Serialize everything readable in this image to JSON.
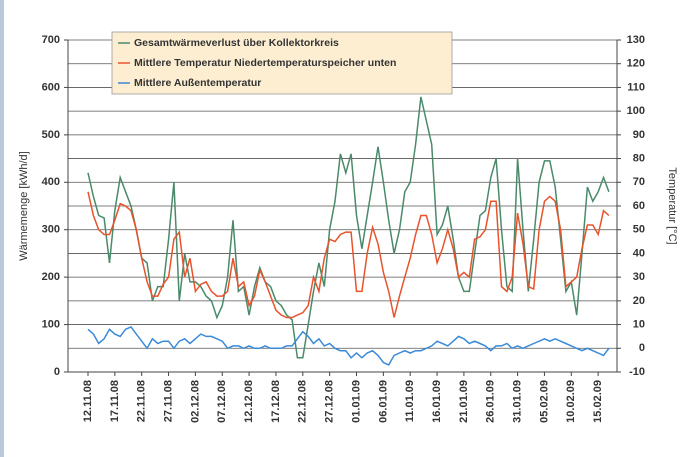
{
  "chart_data": {
    "type": "line",
    "ylabel": "Wärmemenge [kWh/d]",
    "y2label": "Temperatur [°C]",
    "ylim": [
      0,
      700
    ],
    "yticks": [
      0,
      100,
      200,
      300,
      400,
      500,
      600,
      700
    ],
    "y2lim": [
      -10,
      130
    ],
    "y2ticks": [
      -10,
      0,
      10,
      20,
      30,
      40,
      50,
      60,
      70,
      80,
      90,
      100,
      110,
      120,
      130
    ],
    "grid": true,
    "legend": "top-left",
    "categories": [
      "12.11.08",
      null,
      null,
      null,
      null,
      "17.11.08",
      null,
      null,
      null,
      null,
      "22.11.08",
      null,
      null,
      null,
      null,
      "27.11.08",
      null,
      null,
      null,
      null,
      "02.12.08",
      null,
      null,
      null,
      null,
      "07.12.08",
      null,
      null,
      null,
      null,
      "12.12.08",
      null,
      null,
      null,
      null,
      "17.12.08",
      null,
      null,
      null,
      null,
      "22.12.08",
      null,
      null,
      null,
      null,
      "27.12.08",
      null,
      null,
      null,
      null,
      "01.01.09",
      null,
      null,
      null,
      null,
      "06.01.09",
      null,
      null,
      null,
      null,
      "11.01.09",
      null,
      null,
      null,
      null,
      "16.01.09",
      null,
      null,
      null,
      null,
      "21.01.09",
      null,
      null,
      null,
      null,
      "26.01.09",
      null,
      null,
      null,
      null,
      "31.01.09",
      null,
      null,
      null,
      null,
      "05.02.09",
      null,
      null,
      null,
      null,
      "10.02.09",
      null,
      null,
      null,
      null,
      "15.02.09",
      null,
      null
    ],
    "series": [
      {
        "name": "Gesamtwärmeverlust über Kollektorkreis",
        "color": "#4a8a6a",
        "axis": "y",
        "values": [
          420,
          370,
          330,
          325,
          230,
          340,
          410,
          380,
          350,
          300,
          240,
          230,
          150,
          180,
          180,
          280,
          400,
          150,
          250,
          190,
          190,
          180,
          160,
          150,
          115,
          140,
          200,
          320,
          170,
          180,
          120,
          180,
          220,
          190,
          180,
          150,
          140,
          120,
          110,
          30,
          30,
          100,
          170,
          230,
          180,
          300,
          360,
          460,
          420,
          460,
          330,
          260,
          330,
          400,
          475,
          400,
          320,
          250,
          300,
          380,
          400,
          480,
          580,
          530,
          480,
          290,
          310,
          350,
          280,
          200,
          170,
          170,
          250,
          330,
          340,
          410,
          450,
          300,
          180,
          170,
          450,
          300,
          170,
          280,
          400,
          445,
          445,
          390,
          280,
          170,
          190,
          120,
          250,
          390,
          360,
          380,
          410,
          380
        ]
      },
      {
        "name": "Mittlere Temperatur Niedertemperaturspeicher unten",
        "color": "#e8532c",
        "axis": "y2",
        "values": [
          66,
          56,
          50,
          48,
          48,
          54,
          61,
          60,
          58,
          50,
          38,
          28,
          22,
          22,
          27,
          30,
          46,
          49,
          30,
          38,
          24,
          27,
          28,
          24,
          22,
          22,
          24,
          38,
          26,
          28,
          18,
          22,
          33,
          28,
          22,
          16,
          14,
          13,
          13,
          14,
          15,
          18,
          30,
          24,
          38,
          46,
          45,
          48,
          49,
          49,
          24,
          24,
          40,
          51,
          44,
          32,
          24,
          13,
          22,
          30,
          38,
          48,
          56,
          56,
          48,
          36,
          42,
          50,
          42,
          30,
          32,
          30,
          46,
          47,
          50,
          62,
          62,
          26,
          24,
          30,
          57,
          44,
          26,
          25,
          50,
          62,
          64,
          62,
          50,
          26,
          28,
          30,
          42,
          52,
          52,
          48,
          58,
          56
        ]
      },
      {
        "name": "Mittlere Außentemperatur",
        "color": "#3a8ad8",
        "axis": "y2",
        "values": [
          8,
          6,
          2,
          4,
          8,
          6,
          5,
          8,
          9,
          6,
          3,
          0,
          4,
          2,
          3,
          3,
          0,
          3,
          4,
          2,
          4,
          6,
          5,
          5,
          4,
          3,
          0,
          1,
          1,
          0,
          1,
          0,
          0,
          1,
          0,
          0,
          0,
          1,
          1,
          4,
          7,
          5,
          2,
          4,
          1,
          2,
          0,
          -1,
          -1,
          -4,
          -2,
          -4,
          -2,
          -1,
          -3,
          -6,
          -7,
          -3,
          -2,
          -1,
          -2,
          -1,
          -1,
          0,
          1,
          3,
          2,
          1,
          3,
          5,
          4,
          2,
          3,
          2,
          1,
          -1,
          1,
          1,
          2,
          0,
          1,
          0,
          1,
          2,
          3,
          4,
          3,
          4,
          3,
          2,
          1,
          0,
          -1,
          0,
          -1,
          -2,
          -3,
          0
        ]
      }
    ]
  }
}
